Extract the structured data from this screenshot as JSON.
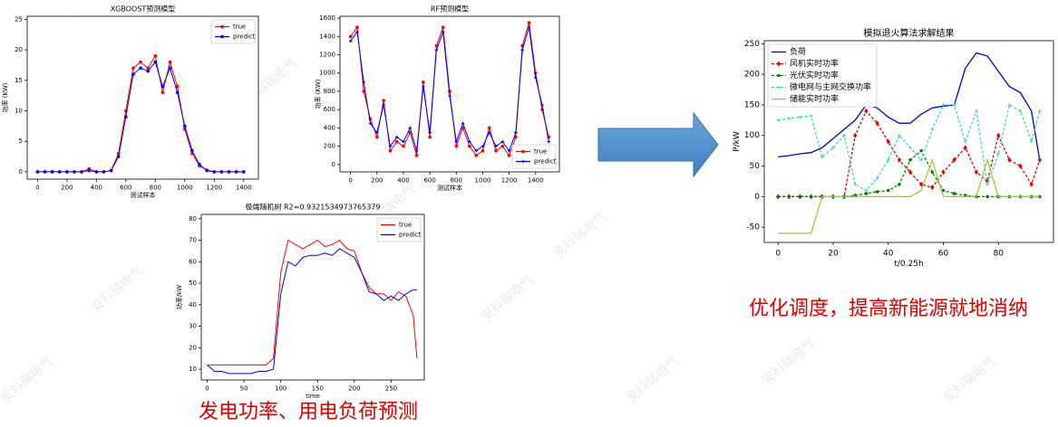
{
  "chart_data": [
    {
      "type": "line",
      "title": "XGBOOST预测模型",
      "x_label": "测试样本",
      "y_label": "功率 (KW)",
      "legend": "upper right",
      "x": [
        0,
        50,
        100,
        150,
        200,
        250,
        300,
        350,
        400,
        450,
        500,
        550,
        600,
        650,
        700,
        750,
        800,
        850,
        900,
        950,
        1000,
        1050,
        1100,
        1150,
        1200,
        1250,
        1300,
        1350,
        1400
      ],
      "series": [
        {
          "name": "true",
          "color": "#ff0000",
          "marker": "o",
          "values": [
            0,
            0,
            0,
            0,
            0,
            0,
            0,
            0.5,
            0,
            0,
            0.2,
            3,
            10,
            17,
            18,
            17,
            19,
            13,
            18,
            14,
            7,
            3,
            1,
            0.3,
            0,
            0,
            0,
            0,
            0
          ]
        },
        {
          "name": "predict",
          "color": "#0000ff",
          "marker": "o",
          "values": [
            0,
            0,
            0,
            0,
            0,
            0,
            0,
            0.2,
            0,
            0,
            0.2,
            2.5,
            9,
            16,
            17,
            16.5,
            18,
            14,
            17,
            13,
            7.5,
            3.5,
            1.2,
            0.2,
            0,
            0,
            0,
            0,
            0
          ]
        }
      ],
      "xlim": [
        -70,
        1500
      ],
      "ylim": [
        -1.2,
        25.5
      ],
      "xticks": [
        0,
        200,
        400,
        600,
        800,
        1000,
        1200,
        1400
      ],
      "yticks": [
        0,
        5,
        10,
        15,
        20,
        25
      ]
    },
    {
      "type": "line",
      "title": "RF预测模型",
      "x_label": "测试样本",
      "y_label": "功率 (KW)",
      "legend": "lower right",
      "x": [
        0,
        50,
        100,
        150,
        200,
        250,
        300,
        350,
        400,
        450,
        500,
        550,
        600,
        650,
        700,
        750,
        800,
        850,
        900,
        950,
        1000,
        1050,
        1100,
        1150,
        1200,
        1250,
        1300,
        1350,
        1400,
        1450,
        1500
      ],
      "series": [
        {
          "name": "true",
          "color": "#ff0000",
          "marker": "o",
          "values": [
            1400,
            1500,
            800,
            500,
            300,
            700,
            150,
            250,
            200,
            350,
            100,
            900,
            300,
            1300,
            1500,
            800,
            200,
            400,
            200,
            100,
            150,
            400,
            150,
            200,
            100,
            300,
            1300,
            1550,
            1000,
            600,
            300
          ]
        },
        {
          "name": "predict",
          "color": "#0000ff",
          "marker": "+",
          "values": [
            1350,
            1450,
            900,
            450,
            350,
            650,
            200,
            300,
            250,
            400,
            150,
            850,
            350,
            1250,
            1450,
            750,
            250,
            450,
            250,
            150,
            200,
            350,
            200,
            250,
            150,
            350,
            1250,
            1500,
            950,
            650,
            250
          ]
        }
      ],
      "xlim": [
        -80,
        1580
      ],
      "ylim": [
        -80,
        1620
      ],
      "xticks": [
        0,
        200,
        400,
        600,
        800,
        1000,
        1200,
        1400
      ],
      "yticks": [
        0,
        200,
        400,
        600,
        800,
        1000,
        1200,
        1400,
        1600
      ]
    },
    {
      "type": "line",
      "title": "极端随机树 R2=0.9321534973765379",
      "x_label": "time",
      "y_label": "功率/kW",
      "legend": "upper right",
      "x": [
        0,
        10,
        20,
        30,
        40,
        50,
        60,
        70,
        80,
        90,
        100,
        110,
        120,
        130,
        140,
        150,
        160,
        170,
        180,
        190,
        200,
        210,
        220,
        230,
        240,
        250,
        260,
        270,
        280,
        285
      ],
      "series": [
        {
          "name": "true",
          "color": "#ff0000",
          "marker": null,
          "values": [
            12,
            12,
            12,
            12,
            12,
            12,
            12,
            12,
            12,
            15,
            55,
            70,
            68,
            66,
            68,
            70,
            67,
            68,
            70,
            66,
            65,
            55,
            48,
            45,
            45,
            42,
            46,
            44,
            35,
            15
          ]
        },
        {
          "name": "predict",
          "color": "#0000ff",
          "marker": null,
          "values": [
            12,
            9,
            9,
            8,
            8,
            8,
            8,
            9,
            9,
            10,
            45,
            60,
            58,
            62,
            63,
            63,
            64,
            63,
            66,
            64,
            62,
            55,
            46,
            45,
            42,
            44,
            42,
            45,
            47,
            47
          ]
        }
      ],
      "xlim": [
        -8,
        295
      ],
      "ylim": [
        5,
        82
      ],
      "xticks": [
        0,
        50,
        100,
        150,
        200,
        250
      ],
      "yticks": [
        10,
        20,
        30,
        40,
        50,
        60,
        70,
        80
      ]
    },
    {
      "type": "line",
      "title": "模拟退火算法求解结果",
      "x_label": "t/0.25h",
      "y_label": "P/kW",
      "legend": "upper left",
      "x": [
        0,
        4,
        8,
        12,
        16,
        20,
        24,
        28,
        32,
        36,
        40,
        44,
        48,
        52,
        56,
        60,
        64,
        68,
        72,
        76,
        80,
        84,
        88,
        92,
        95
      ],
      "series": [
        {
          "name": "负荷",
          "color": "#0000cc",
          "marker": null,
          "dash": false,
          "values": [
            65,
            67,
            70,
            72,
            80,
            95,
            110,
            125,
            150,
            145,
            130,
            120,
            120,
            135,
            145,
            148,
            150,
            210,
            235,
            230,
            205,
            180,
            170,
            140,
            60
          ]
        },
        {
          "name": "风机实时功率",
          "color": "#e00000",
          "marker": "d",
          "dash": true,
          "values": [
            0,
            0,
            0,
            0,
            0,
            0,
            0,
            100,
            140,
            120,
            90,
            60,
            40,
            20,
            15,
            40,
            60,
            80,
            40,
            25,
            100,
            60,
            50,
            20,
            60
          ]
        },
        {
          "name": "光伏实时功率",
          "color": "#008000",
          "marker": "o",
          "dash": true,
          "values": [
            0,
            0,
            0,
            0,
            0,
            0,
            0,
            2,
            5,
            8,
            10,
            20,
            60,
            75,
            40,
            10,
            5,
            2,
            0,
            0,
            0,
            0,
            0,
            0,
            0
          ]
        },
        {
          "name": "微电网与主网交换功率",
          "color": "#40d0d0",
          "marker": "+",
          "dash": true,
          "values": [
            125,
            128,
            130,
            132,
            65,
            80,
            100,
            20,
            10,
            30,
            60,
            100,
            80,
            60,
            110,
            150,
            150,
            90,
            140,
            20,
            70,
            150,
            140,
            90,
            140
          ]
        },
        {
          "name": "储能实时功率",
          "color": "#9acd32",
          "marker": null,
          "dash": false,
          "values": [
            -60,
            -60,
            -60,
            -60,
            0,
            0,
            0,
            0,
            0,
            0,
            0,
            0,
            0,
            10,
            60,
            0,
            0,
            0,
            0,
            60,
            0,
            0,
            0,
            0,
            0
          ]
        }
      ],
      "xlim": [
        -5,
        100
      ],
      "ylim": [
        -75,
        255
      ],
      "xticks": [
        0,
        20,
        40,
        60,
        80
      ],
      "yticks": [
        -50,
        0,
        50,
        100,
        150,
        200,
        250
      ]
    }
  ],
  "captions": [
    "发电功率、用电负荷预测",
    "优化调度，提高新能源就地消纳"
  ],
  "watermark": "安科瑞电气"
}
